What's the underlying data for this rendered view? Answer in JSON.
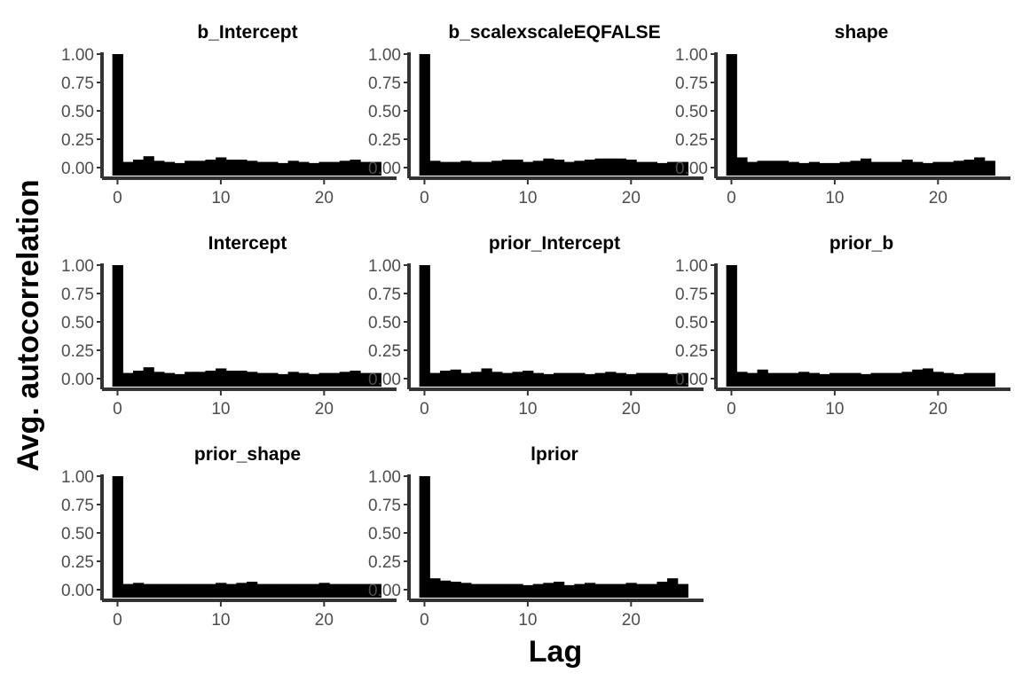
{
  "chart_data": {
    "type": "bar",
    "xlabel": "Lag",
    "ylabel": "Avg. autocorrelation",
    "xlim": [
      -1.5,
      26.5
    ],
    "ylim": [
      0,
      1.0
    ],
    "x_ticks": [
      0,
      10,
      20
    ],
    "x_tick_labels": [
      "0",
      "10",
      "20"
    ],
    "y_ticks": [
      0,
      0.25,
      0.5,
      0.75,
      1.0
    ],
    "y_tick_labels": [
      "0.00",
      "0.25",
      "0.50",
      "0.75",
      "1.00"
    ],
    "lags": [
      0,
      1,
      2,
      3,
      4,
      5,
      6,
      7,
      8,
      9,
      10,
      11,
      12,
      13,
      14,
      15,
      16,
      17,
      18,
      19,
      20,
      21,
      22,
      23,
      24,
      25
    ],
    "bar_color": "#000000",
    "panels": [
      {
        "title": "b_Intercept",
        "values": [
          1.0,
          0.05,
          0.07,
          0.1,
          0.06,
          0.05,
          0.04,
          0.06,
          0.06,
          0.07,
          0.09,
          0.07,
          0.07,
          0.06,
          0.05,
          0.05,
          0.04,
          0.06,
          0.05,
          0.04,
          0.05,
          0.05,
          0.06,
          0.07,
          0.05,
          0.05
        ]
      },
      {
        "title": "b_scalexscaleEQFALSE",
        "values": [
          1.0,
          0.06,
          0.05,
          0.05,
          0.06,
          0.05,
          0.05,
          0.06,
          0.07,
          0.07,
          0.05,
          0.06,
          0.08,
          0.07,
          0.05,
          0.06,
          0.07,
          0.08,
          0.08,
          0.08,
          0.07,
          0.05,
          0.05,
          0.04,
          0.05,
          0.05
        ]
      },
      {
        "title": "shape",
        "values": [
          1.0,
          0.09,
          0.05,
          0.06,
          0.06,
          0.06,
          0.05,
          0.04,
          0.05,
          0.04,
          0.04,
          0.05,
          0.06,
          0.08,
          0.05,
          0.05,
          0.05,
          0.07,
          0.05,
          0.04,
          0.05,
          0.05,
          0.06,
          0.07,
          0.09,
          0.06
        ]
      },
      {
        "title": "Intercept",
        "values": [
          1.0,
          0.05,
          0.07,
          0.1,
          0.06,
          0.05,
          0.04,
          0.06,
          0.06,
          0.07,
          0.09,
          0.07,
          0.07,
          0.06,
          0.05,
          0.05,
          0.04,
          0.06,
          0.05,
          0.04,
          0.05,
          0.05,
          0.06,
          0.07,
          0.05,
          0.05
        ]
      },
      {
        "title": "prior_Intercept",
        "values": [
          1.0,
          0.05,
          0.07,
          0.08,
          0.05,
          0.06,
          0.09,
          0.06,
          0.05,
          0.06,
          0.07,
          0.05,
          0.04,
          0.05,
          0.05,
          0.05,
          0.04,
          0.05,
          0.06,
          0.05,
          0.04,
          0.05,
          0.05,
          0.05,
          0.04,
          0.05
        ]
      },
      {
        "title": "prior_b",
        "values": [
          1.0,
          0.06,
          0.05,
          0.08,
          0.05,
          0.05,
          0.05,
          0.06,
          0.05,
          0.04,
          0.05,
          0.05,
          0.05,
          0.04,
          0.05,
          0.05,
          0.05,
          0.06,
          0.08,
          0.09,
          0.06,
          0.05,
          0.04,
          0.05,
          0.05,
          0.05
        ]
      },
      {
        "title": "prior_shape",
        "values": [
          1.0,
          0.05,
          0.06,
          0.05,
          0.05,
          0.05,
          0.05,
          0.05,
          0.05,
          0.05,
          0.06,
          0.05,
          0.06,
          0.07,
          0.05,
          0.05,
          0.05,
          0.05,
          0.05,
          0.05,
          0.06,
          0.05,
          0.05,
          0.05,
          0.05,
          0.05
        ]
      },
      {
        "title": "lprior",
        "values": [
          1.0,
          0.1,
          0.08,
          0.07,
          0.06,
          0.05,
          0.05,
          0.05,
          0.05,
          0.05,
          0.04,
          0.05,
          0.06,
          0.07,
          0.04,
          0.05,
          0.06,
          0.05,
          0.05,
          0.05,
          0.06,
          0.05,
          0.05,
          0.07,
          0.1,
          0.05
        ]
      }
    ]
  }
}
